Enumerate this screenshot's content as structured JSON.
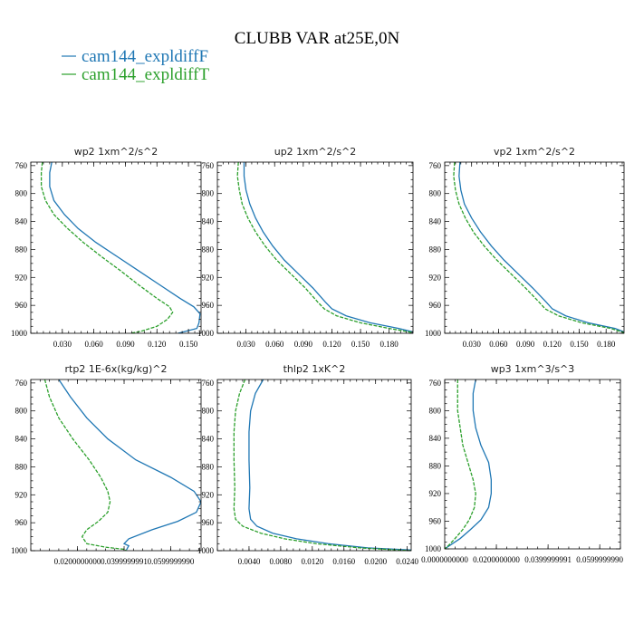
{
  "figure": {
    "title": "CLUBB VAR at25E,0N"
  },
  "colors": {
    "series1": "#1f77b4",
    "series2": "#2ca02c"
  },
  "legend": [
    {
      "name": "cam144_expldiffF",
      "color": "#1f77b4",
      "dash": "solid"
    },
    {
      "name": "cam144_expldiffT",
      "color": "#2ca02c",
      "dash": "dashed"
    }
  ],
  "chart_data": [
    {
      "type": "line",
      "title": "wp2   1xm^2/s^2",
      "xlim": [
        0.0,
        0.162
      ],
      "ylim": [
        1000,
        755
      ],
      "y_inverted": true,
      "xticks": [
        0.03,
        0.06,
        0.09,
        0.12,
        0.15
      ],
      "xtick_labels": [
        "0.030",
        "0.060",
        "0.090",
        "0.120",
        "0.150"
      ],
      "yticks": [
        760,
        800,
        840,
        880,
        920,
        960,
        1000
      ],
      "series": [
        {
          "name": "cam144_expldiffF",
          "points": [
            [
              0.02,
              755
            ],
            [
              0.018,
              770
            ],
            [
              0.018,
              790
            ],
            [
              0.022,
              810
            ],
            [
              0.032,
              830
            ],
            [
              0.045,
              850
            ],
            [
              0.062,
              870
            ],
            [
              0.082,
              890
            ],
            [
              0.102,
              910
            ],
            [
              0.122,
              930
            ],
            [
              0.142,
              950
            ],
            [
              0.155,
              962
            ],
            [
              0.161,
              972
            ],
            [
              0.16,
              985
            ],
            [
              0.158,
              993
            ],
            [
              0.14,
              1000
            ]
          ]
        },
        {
          "name": "cam144_expldiffT",
          "points": [
            [
              0.011,
              755
            ],
            [
              0.01,
              770
            ],
            [
              0.01,
              790
            ],
            [
              0.014,
              810
            ],
            [
              0.022,
              830
            ],
            [
              0.035,
              850
            ],
            [
              0.05,
              870
            ],
            [
              0.067,
              890
            ],
            [
              0.085,
              910
            ],
            [
              0.102,
              930
            ],
            [
              0.12,
              950
            ],
            [
              0.132,
              962
            ],
            [
              0.135,
              970
            ],
            [
              0.13,
              980
            ],
            [
              0.12,
              990
            ],
            [
              0.105,
              997
            ],
            [
              0.095,
              1000
            ]
          ]
        }
      ]
    },
    {
      "type": "line",
      "title": "up2   1xm^2/s^2",
      "xlim": [
        0.0,
        0.205
      ],
      "ylim": [
        1000,
        755
      ],
      "y_inverted": true,
      "xticks": [
        0.03,
        0.06,
        0.09,
        0.12,
        0.15,
        0.18
      ],
      "xtick_labels": [
        "0.030",
        "0.060",
        "0.090",
        "0.120",
        "0.150",
        "0.180"
      ],
      "yticks": [
        760,
        800,
        840,
        880,
        920,
        960,
        1000
      ],
      "series": [
        {
          "name": "cam144_expldiffF",
          "points": [
            [
              0.028,
              755
            ],
            [
              0.028,
              775
            ],
            [
              0.03,
              795
            ],
            [
              0.034,
              815
            ],
            [
              0.04,
              835
            ],
            [
              0.048,
              855
            ],
            [
              0.058,
              875
            ],
            [
              0.07,
              895
            ],
            [
              0.085,
              915
            ],
            [
              0.1,
              935
            ],
            [
              0.113,
              955
            ],
            [
              0.12,
              965
            ],
            [
              0.135,
              975
            ],
            [
              0.16,
              985
            ],
            [
              0.19,
              993
            ],
            [
              0.205,
              998
            ]
          ]
        },
        {
          "name": "cam144_expldiffT",
          "points": [
            [
              0.022,
              755
            ],
            [
              0.021,
              775
            ],
            [
              0.023,
              795
            ],
            [
              0.026,
              815
            ],
            [
              0.032,
              835
            ],
            [
              0.04,
              855
            ],
            [
              0.05,
              875
            ],
            [
              0.062,
              895
            ],
            [
              0.077,
              915
            ],
            [
              0.092,
              935
            ],
            [
              0.105,
              955
            ],
            [
              0.112,
              965
            ],
            [
              0.125,
              975
            ],
            [
              0.15,
              985
            ],
            [
              0.18,
              993
            ],
            [
              0.205,
              999
            ]
          ]
        }
      ]
    },
    {
      "type": "line",
      "title": "vp2   1xm^2/s^2",
      "xlim": [
        0.0,
        0.2
      ],
      "ylim": [
        1000,
        755
      ],
      "y_inverted": true,
      "xticks": [
        0.03,
        0.06,
        0.09,
        0.12,
        0.15,
        0.18
      ],
      "xtick_labels": [
        "0.030",
        "0.060",
        "0.090",
        "0.120",
        "0.150",
        "0.180"
      ],
      "yticks": [
        760,
        800,
        840,
        880,
        920,
        960,
        1000
      ],
      "series": [
        {
          "name": "cam144_expldiffF",
          "points": [
            [
              0.017,
              755
            ],
            [
              0.016,
              775
            ],
            [
              0.018,
              795
            ],
            [
              0.022,
              815
            ],
            [
              0.03,
              835
            ],
            [
              0.04,
              855
            ],
            [
              0.052,
              875
            ],
            [
              0.066,
              895
            ],
            [
              0.082,
              915
            ],
            [
              0.098,
              935
            ],
            [
              0.113,
              955
            ],
            [
              0.12,
              965
            ],
            [
              0.135,
              975
            ],
            [
              0.16,
              985
            ],
            [
              0.19,
              993
            ],
            [
              0.2,
              998
            ]
          ]
        },
        {
          "name": "cam144_expldiffT",
          "points": [
            [
              0.011,
              755
            ],
            [
              0.01,
              775
            ],
            [
              0.012,
              795
            ],
            [
              0.016,
              815
            ],
            [
              0.023,
              835
            ],
            [
              0.032,
              855
            ],
            [
              0.044,
              875
            ],
            [
              0.058,
              895
            ],
            [
              0.074,
              915
            ],
            [
              0.09,
              935
            ],
            [
              0.105,
              955
            ],
            [
              0.112,
              965
            ],
            [
              0.127,
              975
            ],
            [
              0.153,
              985
            ],
            [
              0.185,
              993
            ],
            [
              0.2,
              999
            ]
          ]
        }
      ]
    },
    {
      "type": "line",
      "title": "rtp2   1E-6x(kg/kg)^2",
      "xlim": [
        0.0,
        0.073
      ],
      "ylim": [
        1000,
        755
      ],
      "y_inverted": true,
      "xticks": [
        0.02,
        0.04,
        0.06
      ],
      "xtick_labels": [
        "0.0200000000",
        "0.0399999991",
        "0.0599999990"
      ],
      "yticks": [
        760,
        800,
        840,
        880,
        920,
        960,
        1000
      ],
      "series": [
        {
          "name": "cam144_expldiffF",
          "points": [
            [
              0.012,
              755
            ],
            [
              0.017,
              780
            ],
            [
              0.024,
              810
            ],
            [
              0.033,
              840
            ],
            [
              0.045,
              870
            ],
            [
              0.06,
              895
            ],
            [
              0.07,
              915
            ],
            [
              0.073,
              930
            ],
            [
              0.071,
              945
            ],
            [
              0.063,
              958
            ],
            [
              0.052,
              970
            ],
            [
              0.042,
              983
            ],
            [
              0.04,
              990
            ],
            [
              0.042,
              993
            ],
            [
              0.041,
              999
            ]
          ]
        },
        {
          "name": "cam144_expldiffT",
          "points": [
            [
              0.006,
              755
            ],
            [
              0.008,
              780
            ],
            [
              0.012,
              810
            ],
            [
              0.018,
              840
            ],
            [
              0.025,
              870
            ],
            [
              0.03,
              895
            ],
            [
              0.033,
              915
            ],
            [
              0.034,
              930
            ],
            [
              0.033,
              945
            ],
            [
              0.029,
              958
            ],
            [
              0.024,
              970
            ],
            [
              0.022,
              980
            ],
            [
              0.024,
              990
            ],
            [
              0.032,
              995
            ],
            [
              0.04,
              998
            ],
            [
              0.041,
              1000
            ]
          ]
        }
      ]
    },
    {
      "type": "line",
      "title": "thlp2   1xK^2",
      "xlim": [
        0.0,
        0.0245
      ],
      "ylim": [
        1000,
        755
      ],
      "y_inverted": true,
      "xticks": [
        0.004,
        0.008,
        0.012,
        0.016,
        0.02,
        0.024
      ],
      "xtick_labels": [
        "0.0040",
        "0.0080",
        "0.0120",
        "0.0160",
        "0.0200",
        "0.0240"
      ],
      "yticks": [
        760,
        800,
        840,
        880,
        920,
        960,
        1000
      ],
      "series": [
        {
          "name": "cam144_expldiffF",
          "points": [
            [
              0.0058,
              755
            ],
            [
              0.0048,
              775
            ],
            [
              0.0042,
              800
            ],
            [
              0.004,
              830
            ],
            [
              0.004,
              870
            ],
            [
              0.0041,
              910
            ],
            [
              0.004,
              940
            ],
            [
              0.0042,
              955
            ],
            [
              0.005,
              965
            ],
            [
              0.007,
              975
            ],
            [
              0.01,
              983
            ],
            [
              0.014,
              990
            ],
            [
              0.019,
              996
            ],
            [
              0.0245,
              999
            ]
          ]
        },
        {
          "name": "cam144_expldiffT",
          "points": [
            [
              0.0035,
              755
            ],
            [
              0.0028,
              775
            ],
            [
              0.0023,
              800
            ],
            [
              0.0021,
              830
            ],
            [
              0.0021,
              870
            ],
            [
              0.0022,
              910
            ],
            [
              0.0021,
              940
            ],
            [
              0.0023,
              955
            ],
            [
              0.0032,
              965
            ],
            [
              0.0055,
              975
            ],
            [
              0.0085,
              983
            ],
            [
              0.0125,
              990
            ],
            [
              0.018,
              996
            ],
            [
              0.0245,
              1000
            ]
          ]
        }
      ]
    },
    {
      "type": "line",
      "title": "wp3   1xm^3/s^3",
      "xlim": [
        0.0,
        0.068
      ],
      "ylim": [
        1000,
        755
      ],
      "y_inverted": true,
      "xticks": [
        0.0,
        0.02,
        0.04,
        0.06
      ],
      "xtick_labels": [
        "0.0000000000",
        "0.0200000000",
        "0.0399999991",
        "0.0599999990"
      ],
      "yticks": [
        760,
        800,
        840,
        880,
        920,
        960,
        1000
      ],
      "series": [
        {
          "name": "cam144_expldiffF",
          "points": [
            [
              0.012,
              755
            ],
            [
              0.011,
              775
            ],
            [
              0.011,
              800
            ],
            [
              0.012,
              825
            ],
            [
              0.014,
              850
            ],
            [
              0.017,
              875
            ],
            [
              0.018,
              900
            ],
            [
              0.018,
              920
            ],
            [
              0.017,
              940
            ],
            [
              0.014,
              958
            ],
            [
              0.01,
              972
            ],
            [
              0.006,
              985
            ],
            [
              0.002,
              995
            ],
            [
              0.0,
              1000
            ]
          ]
        },
        {
          "name": "cam144_expldiffT",
          "points": [
            [
              0.005,
              755
            ],
            [
              0.005,
              775
            ],
            [
              0.005,
              800
            ],
            [
              0.006,
              825
            ],
            [
              0.007,
              850
            ],
            [
              0.009,
              875
            ],
            [
              0.011,
              900
            ],
            [
              0.012,
              920
            ],
            [
              0.0115,
              940
            ],
            [
              0.0095,
              958
            ],
            [
              0.007,
              972
            ],
            [
              0.004,
              985
            ],
            [
              0.0015,
              995
            ],
            [
              0.0,
              1000
            ]
          ]
        }
      ]
    }
  ]
}
